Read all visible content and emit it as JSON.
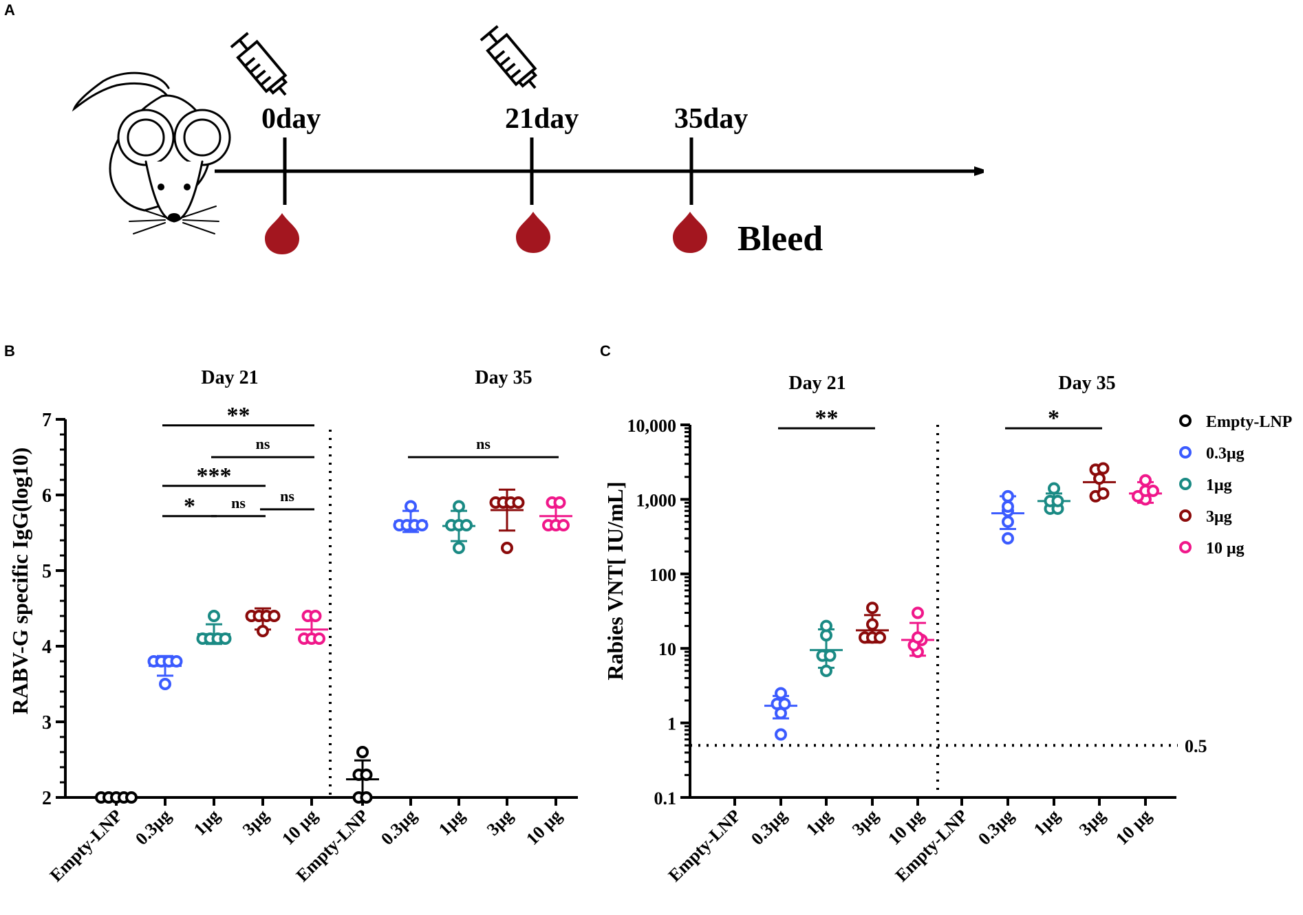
{
  "panel_labels": {
    "a": "A",
    "b": "B",
    "c": "C"
  },
  "timeline": {
    "days": [
      "0day",
      "21day",
      "35day"
    ],
    "bleed_label": "Bleed",
    "mouse_icon": "mouse-icon",
    "syringe_icon": "syringe-icon",
    "blood_icon": "blood-drop-icon",
    "blood_color": "#a3161f"
  },
  "colors": {
    "Empty-LNP": "#000000",
    "0.3μg": "#3b5bff",
    "1μg": "#1a8a84",
    "3μg": "#8b0a0a",
    "10 μg": "#f0178a"
  },
  "chart_data": [
    {
      "id": "B",
      "type": "scatter",
      "ylabel": "RABV-G specific IgG(log10)",
      "ylim": [
        2,
        7
      ],
      "yticks": [
        "2",
        "3",
        "4",
        "5",
        "6",
        "7"
      ],
      "group_titles": [
        "Day 21",
        "Day 35"
      ],
      "categories": [
        "Empty-LNP",
        "0.3μg",
        "1μg",
        "3μg",
        "10 μg",
        "Empty-LNP",
        "0.3μg",
        "1μg",
        "3μg",
        "10 μg"
      ],
      "groups": [
        {
          "label": "Empty-LNP",
          "points": [
            2,
            2,
            2,
            2,
            2
          ],
          "mean": 2.0,
          "sd": 0
        },
        {
          "label": "0.3μg",
          "points": [
            3.5,
            3.8,
            3.8,
            3.8,
            3.8
          ],
          "mean": 3.74,
          "sd": 0.13
        },
        {
          "label": "1μg",
          "points": [
            4.1,
            4.1,
            4.1,
            4.1,
            4.4
          ],
          "mean": 4.16,
          "sd": 0.13
        },
        {
          "label": "3μg",
          "points": [
            4.2,
            4.4,
            4.4,
            4.4,
            4.4
          ],
          "mean": 4.36,
          "sd": 0.14
        },
        {
          "label": "10 μg",
          "points": [
            4.1,
            4.1,
            4.1,
            4.4,
            4.4
          ],
          "mean": 4.22,
          "sd": 0.15
        },
        {
          "label": "Empty-LNP",
          "points": [
            2.0,
            2.0,
            2.3,
            2.3,
            2.6
          ],
          "mean": 2.24,
          "sd": 0.25
        },
        {
          "label": "0.3μg",
          "points": [
            5.6,
            5.6,
            5.6,
            5.6,
            5.85
          ],
          "mean": 5.65,
          "sd": 0.14
        },
        {
          "label": "1μg",
          "points": [
            5.3,
            5.6,
            5.6,
            5.6,
            5.85
          ],
          "mean": 5.59,
          "sd": 0.2
        },
        {
          "label": "3μg",
          "points": [
            5.3,
            5.9,
            5.9,
            5.9,
            5.9
          ],
          "mean": 5.8,
          "sd": 0.27
        },
        {
          "label": "10 μg",
          "points": [
            5.6,
            5.6,
            5.6,
            5.9,
            5.9
          ],
          "mean": 5.72,
          "sd": 0.15
        }
      ],
      "significance": [
        {
          "from": 1,
          "to": 4,
          "label": "**",
          "y": 6.92
        },
        {
          "from": 2,
          "to": 4,
          "label": "ns",
          "y": 6.5
        },
        {
          "from": 1,
          "to": 3,
          "label": "***",
          "y": 6.12
        },
        {
          "from": 1,
          "to": 2,
          "label": "*",
          "y": 5.72
        },
        {
          "from": 2,
          "to": 3,
          "label": "ns",
          "y": 5.72
        },
        {
          "from": 3,
          "to": 4,
          "label": "ns",
          "y": 5.81
        },
        {
          "from": 6,
          "to": 9,
          "label": "ns",
          "y": 6.5
        }
      ]
    },
    {
      "id": "C",
      "type": "scatter",
      "yscale": "log",
      "ylabel": "Rabies VNT[ IU/mL]",
      "ylim": [
        0.1,
        10000
      ],
      "ytick_values": [
        0.1,
        1,
        10,
        100,
        1000,
        10000
      ],
      "yticks": [
        "0.1",
        "1",
        "10",
        "100",
        "1,000",
        "10,000"
      ],
      "group_titles": [
        "Day 21",
        "Day 35"
      ],
      "categories": [
        "Empty-LNP",
        "0.3μg",
        "1μg",
        "3μg",
        "10 μg",
        "Empty-LNP",
        "0.3μg",
        "1μg",
        "3μg",
        "10 μg"
      ],
      "groups": [
        {
          "label": "Empty-LNP",
          "points": [],
          "mean": null,
          "sd_low": null,
          "sd_high": null
        },
        {
          "label": "0.3μg",
          "points": [
            0.7,
            1.35,
            1.8,
            1.8,
            2.5
          ],
          "mean": 1.7,
          "sd_low": 1.15,
          "sd_high": 2.3
        },
        {
          "label": "1μg",
          "points": [
            5,
            8,
            8,
            15,
            20
          ],
          "mean": 9.5,
          "sd_low": 5.5,
          "sd_high": 18
        },
        {
          "label": "3μg",
          "points": [
            14,
            14,
            14,
            21,
            35
          ],
          "mean": 17.5,
          "sd_low": 12,
          "sd_high": 28
        },
        {
          "label": "10 μg",
          "points": [
            9,
            11,
            13,
            14,
            30
          ],
          "mean": 13,
          "sd_low": 8,
          "sd_high": 22
        },
        {
          "label": "Empty-LNP",
          "points": [],
          "mean": null,
          "sd_low": null,
          "sd_high": null
        },
        {
          "label": "0.3μg",
          "points": [
            300,
            500,
            700,
            800,
            1100
          ],
          "mean": 650,
          "sd_low": 400,
          "sd_high": 1100
        },
        {
          "label": "1μg",
          "points": [
            750,
            750,
            950,
            950,
            1400
          ],
          "mean": 950,
          "sd_low": 750,
          "sd_high": 1200
        },
        {
          "label": "3μg",
          "points": [
            1100,
            1200,
            1900,
            2500,
            2600
          ],
          "mean": 1700,
          "sd_low": 1100,
          "sd_high": 2800
        },
        {
          "label": "10 μg",
          "points": [
            1000,
            1100,
            1300,
            1300,
            1800
          ],
          "mean": 1200,
          "sd_low": 900,
          "sd_high": 1700
        }
      ],
      "threshold": {
        "value": 0.5,
        "label": "0.5"
      },
      "significance": [
        {
          "from": 1,
          "to": 3,
          "label": "**",
          "y": 9000
        },
        {
          "from": 6,
          "to": 8,
          "label": "*",
          "y": 9000
        }
      ],
      "legend": [
        "Empty-LNP",
        "0.3μg",
        "1μg",
        "3μg",
        "10 μg"
      ],
      "legend_position": "top-right"
    }
  ]
}
